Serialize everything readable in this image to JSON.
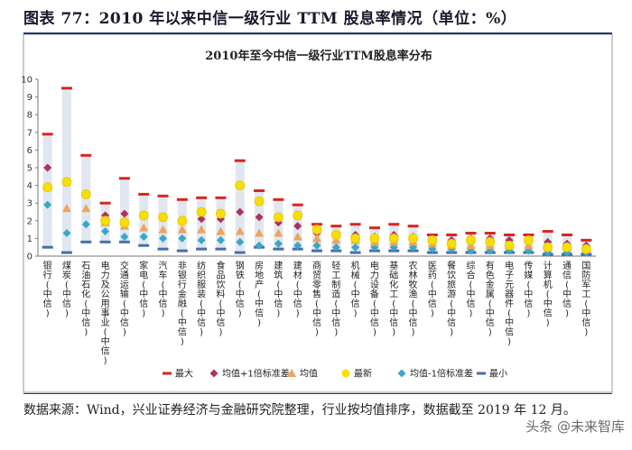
{
  "figure": {
    "title": "图表 77：2010 年以来中信一级行业 TTM 股息率情况（单位：%）",
    "source": "数据来源：Wind，兴业证券经济与金融研究院整理，行业按均值排序，数据截至 2019 年 12 月。",
    "watermark": "头条 @未来智库"
  },
  "chart_data": {
    "type": "scatter",
    "title": "2010年至今中信一级行业TTM股息率分布",
    "ylim": [
      0,
      10
    ],
    "yticks": [
      0,
      1,
      2,
      3,
      4,
      5,
      6,
      7,
      8,
      9,
      10
    ],
    "grid": false,
    "legend_position": "bottom",
    "categories": [
      "银行(中信)",
      "煤炭(中信)",
      "石油石化(中信)",
      "电力及公用事业(中信)",
      "交通运输(中信)",
      "家电(中信)",
      "汽车(中信)",
      "非银行金融(中信)",
      "纺织服装(中信)",
      "食品饮料(中信)",
      "钢铁(中信)",
      "房地产(中信)",
      "建筑(中信)",
      "建材(中信)",
      "商贸零售(中信)",
      "轻工制造(中信)",
      "机械(中信)",
      "电力设备(中信)",
      "基础化工(中信)",
      "农林牧渔(中信)",
      "医药(中信)",
      "餐饮旅游(中信)",
      "综合(中信)",
      "有色金属(中信)",
      "电子元器件(中信)",
      "传媒(中信)",
      "计算机(中信)",
      "通信(中信)",
      "国防军工(中信)"
    ],
    "series": [
      {
        "name": "最大",
        "color": "#d7261e",
        "values": [
          6.9,
          9.5,
          5.7,
          3.0,
          4.4,
          3.5,
          3.4,
          3.2,
          3.3,
          3.3,
          5.4,
          3.7,
          3.2,
          2.9,
          1.8,
          1.7,
          1.8,
          1.6,
          1.8,
          1.7,
          1.2,
          1.2,
          1.3,
          1.3,
          1.2,
          1.2,
          1.4,
          1.2,
          0.9
        ]
      },
      {
        "name": "均值+1倍标准差",
        "color": "#b0305e",
        "values": [
          5.0,
          4.2,
          3.5,
          2.3,
          2.4,
          2.3,
          2.2,
          2.0,
          2.1,
          2.1,
          2.5,
          2.2,
          1.9,
          1.7,
          1.3,
          1.2,
          1.2,
          1.1,
          1.2,
          1.1,
          0.9,
          0.9,
          1.0,
          1.0,
          0.9,
          0.9,
          0.8,
          0.7,
          0.6
        ]
      },
      {
        "name": "均值",
        "color": "#f0a35e",
        "values": [
          3.9,
          2.7,
          2.7,
          1.9,
          1.7,
          1.6,
          1.5,
          1.5,
          1.5,
          1.4,
          1.4,
          1.3,
          1.3,
          1.1,
          1.0,
          0.9,
          0.9,
          0.8,
          0.8,
          0.8,
          0.7,
          0.6,
          0.6,
          0.6,
          0.6,
          0.6,
          0.5,
          0.5,
          0.4
        ]
      },
      {
        "name": "最新",
        "color": "#f7e000",
        "values": [
          3.9,
          4.2,
          3.5,
          2.0,
          1.9,
          2.3,
          2.2,
          2.0,
          2.5,
          2.4,
          4.0,
          3.1,
          2.2,
          2.3,
          1.5,
          1.2,
          1.0,
          1.0,
          1.0,
          1.0,
          0.9,
          0.7,
          0.9,
          0.8,
          0.6,
          0.9,
          0.5,
          0.5,
          0.4
        ]
      },
      {
        "name": "均值-1倍标准差",
        "color": "#3aa7c7",
        "values": [
          2.9,
          1.3,
          1.8,
          1.4,
          1.1,
          1.1,
          1.0,
          1.0,
          0.9,
          0.9,
          0.8,
          0.6,
          0.7,
          0.6,
          0.6,
          0.5,
          0.5,
          0.5,
          0.5,
          0.5,
          0.4,
          0.4,
          0.3,
          0.3,
          0.3,
          0.3,
          0.2,
          0.2,
          0.2
        ]
      },
      {
        "name": "最小",
        "color": "#4a6ea9",
        "values": [
          0.5,
          0.2,
          0.8,
          0.8,
          0.8,
          0.6,
          0.4,
          0.3,
          0.4,
          0.4,
          0.2,
          0.5,
          0.4,
          0.4,
          0.3,
          0.3,
          0.2,
          0.3,
          0.3,
          0.3,
          0.2,
          0.2,
          0.2,
          0.2,
          0.2,
          0.2,
          0.1,
          0.1,
          0.1
        ]
      }
    ]
  }
}
